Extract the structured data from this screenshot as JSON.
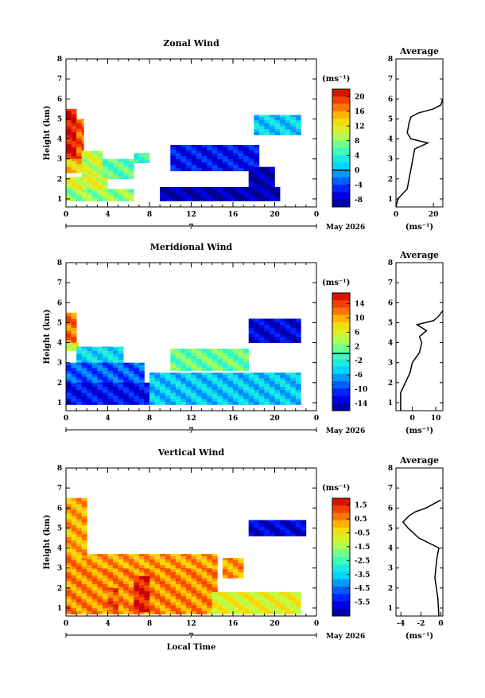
{
  "chart_data": [
    {
      "type": "heatmap",
      "title": "Zonal Wind",
      "ylabel": "Height (km)",
      "x_ticks": [
        "0",
        "4",
        "8",
        "12",
        "16",
        "20",
        "0"
      ],
      "y_ticks": [
        "1",
        "2",
        "3",
        "4",
        "5",
        "6",
        "7",
        "8"
      ],
      "xlim": [
        0,
        24
      ],
      "ylim": [
        0.6,
        8.0
      ],
      "date_label": "May 2026",
      "date_tick": "7",
      "colorbar": {
        "unit": "(ms⁻¹)",
        "range": [
          -10,
          22
        ],
        "ticks": [
          "20",
          "16",
          "12",
          "8",
          "4",
          "0",
          "-4",
          "-8"
        ],
        "contour_at": 0
      },
      "regions": [
        {
          "x": [
            0.0,
            1.0
          ],
          "y": [
            3.0,
            5.5
          ],
          "v": 21
        },
        {
          "x": [
            1.0,
            1.7
          ],
          "y": [
            3.0,
            5.0
          ],
          "v": 18
        },
        {
          "x": [
            0.0,
            1.5
          ],
          "y": [
            2.3,
            3.0
          ],
          "v": 14
        },
        {
          "x": [
            1.5,
            3.5
          ],
          "y": [
            2.1,
            3.4
          ],
          "v": 10
        },
        {
          "x": [
            3.5,
            6.5
          ],
          "y": [
            2.0,
            3.0
          ],
          "v": 6
        },
        {
          "x": [
            6.5,
            8.0
          ],
          "y": [
            2.8,
            3.3
          ],
          "v": 5
        },
        {
          "x": [
            0.0,
            4.0
          ],
          "y": [
            1.5,
            2.1
          ],
          "v": 11
        },
        {
          "x": [
            0.0,
            6.5
          ],
          "y": [
            0.9,
            1.5
          ],
          "v": 8
        },
        {
          "x": [
            10.0,
            18.5
          ],
          "y": [
            2.4,
            3.7
          ],
          "v": -6
        },
        {
          "x": [
            9.0,
            20.5
          ],
          "y": [
            0.9,
            1.6
          ],
          "v": -9
        },
        {
          "x": [
            17.5,
            20.0
          ],
          "y": [
            1.6,
            2.6
          ],
          "v": -9
        },
        {
          "x": [
            18.0,
            22.5
          ],
          "y": [
            4.2,
            5.2
          ],
          "v": 1
        }
      ],
      "average_profile": {
        "title": "Average",
        "xlabel": "(ms⁻¹)",
        "x_ticks": [
          "0",
          "20"
        ],
        "xlim": [
          0,
          25
        ],
        "height": [
          0.6,
          1.0,
          1.2,
          1.5,
          2.0,
          2.5,
          3.0,
          3.5,
          3.8,
          4.0,
          4.3,
          4.8,
          5.1,
          5.3,
          5.5,
          5.7,
          6.0
        ],
        "value": [
          0,
          1,
          3,
          6,
          7,
          8,
          9,
          10,
          17,
          8,
          6,
          7,
          8,
          12,
          20,
          24,
          25
        ]
      }
    },
    {
      "type": "heatmap",
      "title": "Meridional Wind",
      "ylabel": "Height (km)",
      "x_ticks": [
        "0",
        "4",
        "8",
        "12",
        "16",
        "20",
        "0"
      ],
      "y_ticks": [
        "1",
        "2",
        "3",
        "4",
        "5",
        "6",
        "7",
        "8"
      ],
      "xlim": [
        0,
        24
      ],
      "ylim": [
        0.6,
        8.0
      ],
      "date_label": "May 2026",
      "date_tick": "7",
      "colorbar": {
        "unit": "(ms⁻¹)",
        "range": [
          -16,
          17
        ],
        "ticks": [
          "14",
          "10",
          "6",
          "2",
          "-2",
          "-6",
          "-10",
          "-14"
        ],
        "contour_at": 0
      },
      "regions": [
        {
          "x": [
            0.0,
            1.0
          ],
          "y": [
            4.0,
            5.5
          ],
          "v": 12
        },
        {
          "x": [
            0.0,
            1.2
          ],
          "y": [
            3.6,
            4.0
          ],
          "v": 6
        },
        {
          "x": [
            1.0,
            5.5
          ],
          "y": [
            3.0,
            3.8
          ],
          "v": -4
        },
        {
          "x": [
            0.0,
            7.5
          ],
          "y": [
            2.0,
            3.0
          ],
          "v": -9
        },
        {
          "x": [
            0.0,
            8.0
          ],
          "y": [
            0.9,
            2.0
          ],
          "v": -12
        },
        {
          "x": [
            8.0,
            22.5
          ],
          "y": [
            0.9,
            2.5
          ],
          "v": -5
        },
        {
          "x": [
            10.0,
            17.5
          ],
          "y": [
            2.6,
            3.7
          ],
          "v": 1
        },
        {
          "x": [
            17.5,
            22.5
          ],
          "y": [
            4.0,
            5.2
          ],
          "v": -13
        }
      ],
      "average_profile": {
        "title": "Average",
        "xlabel": "(ms⁻¹)",
        "x_ticks": [
          "0",
          "10"
        ],
        "xlim": [
          -7,
          13
        ],
        "height": [
          0.6,
          1.5,
          2.0,
          2.5,
          3.0,
          3.5,
          4.0,
          4.3,
          4.6,
          4.9,
          5.1,
          5.3,
          5.6
        ],
        "value": [
          -5,
          -5,
          -3,
          -1,
          0,
          3,
          4,
          3,
          6,
          2,
          9,
          11,
          13
        ]
      }
    },
    {
      "type": "heatmap",
      "title": "Vertical Wind",
      "ylabel": "Height (km)",
      "xlabel": "Local Time",
      "x_ticks": [
        "0",
        "4",
        "8",
        "12",
        "16",
        "20",
        "0"
      ],
      "y_ticks": [
        "1",
        "2",
        "3",
        "4",
        "5",
        "6",
        "7",
        "8"
      ],
      "xlim": [
        0,
        24
      ],
      "ylim": [
        0.6,
        8.0
      ],
      "date_label": "May 2026",
      "date_tick": "7",
      "colorbar": {
        "unit": "(ms⁻¹)",
        "range": [
          -6.5,
          2.0
        ],
        "ticks": [
          "1.5",
          "0.5",
          "-0.5",
          "-1.5",
          "-2.5",
          "-3.5",
          "-4.5",
          "-5.5"
        ]
      },
      "regions": [
        {
          "x": [
            0.0,
            2.0
          ],
          "y": [
            3.5,
            6.5
          ],
          "v": 0.2
        },
        {
          "x": [
            0.0,
            14.5
          ],
          "y": [
            0.7,
            3.5
          ],
          "v": 0.5
        },
        {
          "x": [
            2.0,
            14.5
          ],
          "y": [
            3.0,
            3.7
          ],
          "v": 0.3
        },
        {
          "x": [
            15.0,
            17.0
          ],
          "y": [
            2.5,
            3.5
          ],
          "v": 0.3
        },
        {
          "x": [
            6.5,
            8.0
          ],
          "y": [
            0.8,
            2.6
          ],
          "v": 1.6
        },
        {
          "x": [
            4.0,
            5.0
          ],
          "y": [
            0.9,
            2.0
          ],
          "v": 1.0
        },
        {
          "x": [
            14.0,
            22.5
          ],
          "y": [
            0.7,
            1.8
          ],
          "v": -0.8
        },
        {
          "x": [
            17.5,
            23.0
          ],
          "y": [
            4.6,
            5.4
          ],
          "v": -5.8
        }
      ],
      "average_profile": {
        "title": "Average",
        "xlabel": "(ms⁻¹)",
        "x_ticks": [
          "-4",
          "-2",
          "0"
        ],
        "xlim": [
          -4.5,
          0.2
        ],
        "height": [
          0.6,
          1.5,
          2.5,
          3.0,
          3.5,
          4.0,
          4.5,
          5.0,
          5.3,
          5.6,
          5.8,
          6.0,
          6.4
        ],
        "value": [
          -0.2,
          -0.3,
          -0.6,
          -0.5,
          -0.4,
          -0.2,
          -2.2,
          -3.3,
          -3.8,
          -3.2,
          -2.6,
          -1.5,
          0.0
        ]
      }
    }
  ]
}
